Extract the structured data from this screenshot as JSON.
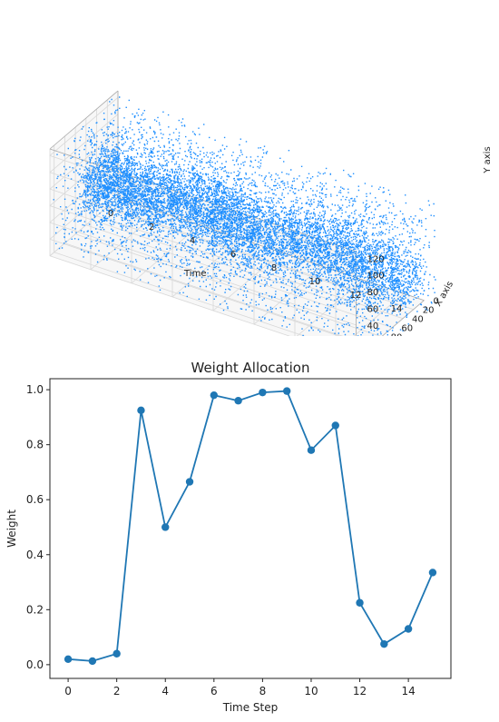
{
  "chart_data": [
    {
      "type": "scatter",
      "projection": "3d",
      "title": "",
      "xlabel": "Time",
      "ylabel": "X axis",
      "zlabel": "Y axis",
      "xlim": [
        0,
        15
      ],
      "ylim": [
        0,
        128
      ],
      "zlim": [
        0,
        128
      ],
      "x_ticks": [
        "0",
        "2",
        "4",
        "6",
        "8",
        "10",
        "12",
        "14"
      ],
      "y_ticks": [
        "0",
        "20",
        "40",
        "60",
        "80",
        "100",
        "120"
      ],
      "z_ticks": [
        "0",
        "20",
        "40",
        "60",
        "80",
        "100",
        "120"
      ],
      "time_steps": [
        0,
        1,
        2,
        3,
        4,
        5,
        6,
        7,
        8,
        9,
        10,
        11,
        12,
        13,
        14,
        15
      ],
      "color": "#1f8fff",
      "grid": true
    },
    {
      "type": "line",
      "title": "Weight Allocation",
      "xlabel": "Time Step",
      "ylabel": "Weight",
      "x": [
        0,
        1,
        2,
        3,
        4,
        5,
        6,
        7,
        8,
        9,
        10,
        11,
        12,
        13,
        14,
        15
      ],
      "values": [
        0.02,
        0.013,
        0.04,
        0.925,
        0.5,
        0.665,
        0.98,
        0.96,
        0.99,
        0.995,
        0.78,
        0.87,
        0.225,
        0.075,
        0.13,
        0.335
      ],
      "xlim": [
        -0.75,
        15.75
      ],
      "ylim": [
        -0.05,
        1.04
      ],
      "x_ticks": [
        "0",
        "2",
        "4",
        "6",
        "8",
        "10",
        "12",
        "14"
      ],
      "y_ticks": [
        "0.0",
        "0.2",
        "0.4",
        "0.6",
        "0.8",
        "1.0"
      ],
      "color": "#1f77b4",
      "marker": "circle",
      "grid": false
    }
  ]
}
